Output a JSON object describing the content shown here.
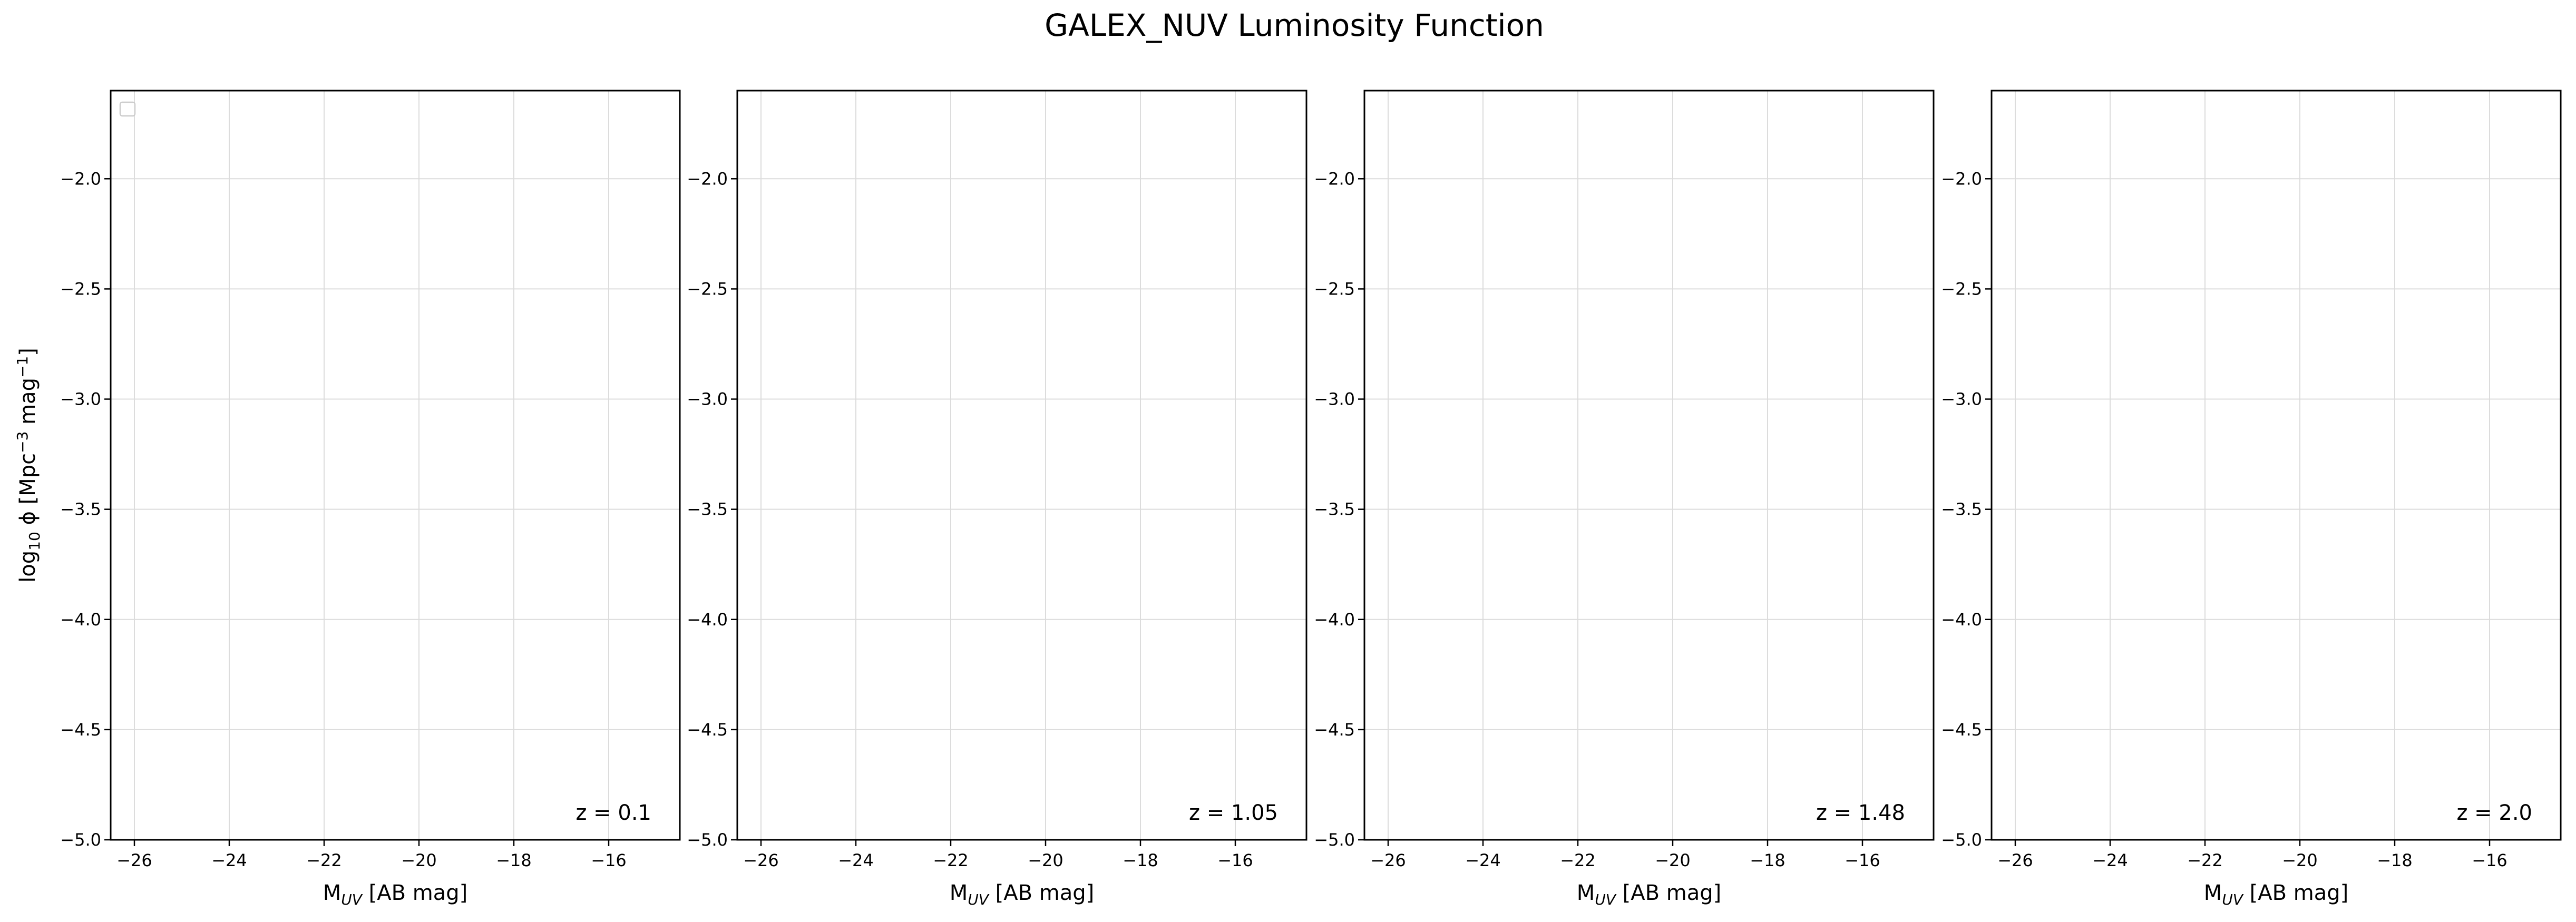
{
  "title": "GALEX_NUV Luminosity Function",
  "colors": {
    "frame": "#000000",
    "grid": "#dcdcdc",
    "background": "#ffffff"
  },
  "chart_data": [
    {
      "type": "line",
      "panel_label": "z = 0.1",
      "xlabel_main": "M",
      "xlabel_sub": "UV",
      "xlabel_rest": " [AB mag]",
      "ylabel_main": "log",
      "ylabel_sub": "10",
      "ylabel_phi": " ϕ [Mpc",
      "ylabel_sup1": "−3",
      "ylabel_mid": " mag",
      "ylabel_sup2": "−1",
      "ylabel_end": "]",
      "xlim": [
        -26.5,
        -14.5
      ],
      "ylim": [
        -5.0,
        -1.6
      ],
      "xticks": [
        -26,
        -24,
        -22,
        -20,
        -18,
        -16
      ],
      "yticks": [
        -2.0,
        -2.5,
        -3.0,
        -3.5,
        -4.0,
        -4.5,
        -5.0
      ],
      "xtick_labels": [
        "−26",
        "−24",
        "−22",
        "−20",
        "−18",
        "−16"
      ],
      "ytick_labels": [
        "−2.0",
        "−2.5",
        "−3.0",
        "−3.5",
        "−4.0",
        "−4.5",
        "−5.0"
      ],
      "grid": true,
      "legend": "top-left (empty)",
      "series": []
    },
    {
      "type": "line",
      "panel_label": "z = 1.05",
      "xlabel_main": "M",
      "xlabel_sub": "UV",
      "xlabel_rest": " [AB mag]",
      "xlim": [
        -26.5,
        -14.5
      ],
      "ylim": [
        -5.0,
        -1.6
      ],
      "xticks": [
        -26,
        -24,
        -22,
        -20,
        -18,
        -16
      ],
      "yticks": [
        -2.0,
        -2.5,
        -3.0,
        -3.5,
        -4.0,
        -4.5,
        -5.0
      ],
      "xtick_labels": [
        "−26",
        "−24",
        "−22",
        "−20",
        "−18",
        "−16"
      ],
      "ytick_labels": [
        "−2.0",
        "−2.5",
        "−3.0",
        "−3.5",
        "−4.0",
        "−4.5",
        "−5.0"
      ],
      "grid": true,
      "series": []
    },
    {
      "type": "line",
      "panel_label": "z = 1.48",
      "xlabel_main": "M",
      "xlabel_sub": "UV",
      "xlabel_rest": " [AB mag]",
      "xlim": [
        -26.5,
        -14.5
      ],
      "ylim": [
        -5.0,
        -1.6
      ],
      "xticks": [
        -26,
        -24,
        -22,
        -20,
        -18,
        -16
      ],
      "yticks": [
        -2.0,
        -2.5,
        -3.0,
        -3.5,
        -4.0,
        -4.5,
        -5.0
      ],
      "xtick_labels": [
        "−26",
        "−24",
        "−22",
        "−20",
        "−18",
        "−16"
      ],
      "ytick_labels": [
        "−2.0",
        "−2.5",
        "−3.0",
        "−3.5",
        "−4.0",
        "−4.5",
        "−5.0"
      ],
      "grid": true,
      "series": []
    },
    {
      "type": "line",
      "panel_label": "z = 2.0",
      "xlabel_main": "M",
      "xlabel_sub": "UV",
      "xlabel_rest": " [AB mag]",
      "xlim": [
        -26.5,
        -14.5
      ],
      "ylim": [
        -5.0,
        -1.6
      ],
      "xticks": [
        -26,
        -24,
        -22,
        -20,
        -18,
        -16
      ],
      "yticks": [
        -2.0,
        -2.5,
        -3.0,
        -3.5,
        -4.0,
        -4.5,
        -5.0
      ],
      "xtick_labels": [
        "−26",
        "−24",
        "−22",
        "−20",
        "−18",
        "−16"
      ],
      "ytick_labels": [
        "−2.0",
        "−2.5",
        "−3.0",
        "−3.5",
        "−4.0",
        "−4.5",
        "−5.0"
      ],
      "grid": true,
      "series": []
    }
  ]
}
